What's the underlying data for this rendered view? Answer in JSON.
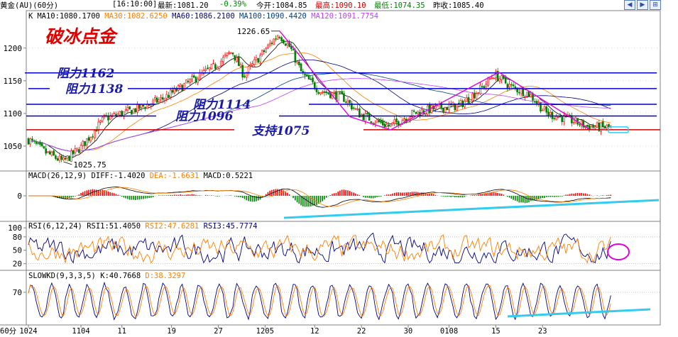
{
  "header": {
    "instrument": "黄金(AU)(60分)",
    "time": "[16:10:00]",
    "latest": "最新:1081.20",
    "change": "-0.39%",
    "open": "今开:1084.85",
    "high": "最高:1090.10",
    "low": "最低:1074.35",
    "prev_close": "昨收:1085.40"
  },
  "colors": {
    "up": "#ff0000",
    "down": "#008000",
    "ma10": "#000000",
    "ma30": "#ff8000",
    "ma60": "#000080",
    "ma100": "#004080",
    "ma120": "#c040ff",
    "trendline": "#e000e0",
    "hline": "#0000cc",
    "support": "#cc0000",
    "cyan": "#33ccee",
    "annot": "#1a1aaa",
    "title": "#e00000"
  },
  "chart_data": [
    {
      "type": "candlestick",
      "panel": "price",
      "legend": [
        {
          "text": "K",
          "color": "#000000"
        },
        {
          "text": "MA10:1080.1700",
          "color": "#000000"
        },
        {
          "text": "MA30:1082.6250",
          "color": "#ff8000"
        },
        {
          "text": "MA60:1086.2100",
          "color": "#000080"
        },
        {
          "text": "MA100:1090.4420",
          "color": "#004080"
        },
        {
          "text": "MA120:1091.7754",
          "color": "#c040ff"
        }
      ],
      "title": "破冰点金",
      "yticks": [
        1050,
        1100,
        1150,
        1200
      ],
      "ylim": [
        1013,
        1241
      ],
      "high_label": "1226.65",
      "low_label": "1025.75",
      "levels": [
        {
          "label": "阻力1162",
          "value": 1162
        },
        {
          "label": "阻力1138",
          "value": 1138
        },
        {
          "label": "阻力1114",
          "value": 1114
        },
        {
          "label": "阻力1096",
          "value": 1096
        },
        {
          "label": "支持1075",
          "value": 1075
        }
      ],
      "trend_points": [
        {
          "bar": 0.43,
          "value": 1226
        },
        {
          "bar": 0.55,
          "value": 1095
        },
        {
          "bar": 0.62,
          "value": 1075
        },
        {
          "bar": 0.805,
          "value": 1163
        },
        {
          "bar": 0.96,
          "value": 1076
        }
      ],
      "anchors": [
        {
          "t": 0.0,
          "p": 1060
        },
        {
          "t": 0.03,
          "p": 1040
        },
        {
          "t": 0.06,
          "p": 1026
        },
        {
          "t": 0.09,
          "p": 1048
        },
        {
          "t": 0.13,
          "p": 1092
        },
        {
          "t": 0.18,
          "p": 1105
        },
        {
          "t": 0.23,
          "p": 1122
        },
        {
          "t": 0.28,
          "p": 1150
        },
        {
          "t": 0.32,
          "p": 1172
        },
        {
          "t": 0.35,
          "p": 1195
        },
        {
          "t": 0.37,
          "p": 1158
        },
        {
          "t": 0.4,
          "p": 1190
        },
        {
          "t": 0.43,
          "p": 1222
        },
        {
          "t": 0.45,
          "p": 1200
        },
        {
          "t": 0.47,
          "p": 1160
        },
        {
          "t": 0.5,
          "p": 1135
        },
        {
          "t": 0.54,
          "p": 1125
        },
        {
          "t": 0.57,
          "p": 1098
        },
        {
          "t": 0.62,
          "p": 1080
        },
        {
          "t": 0.66,
          "p": 1100
        },
        {
          "t": 0.7,
          "p": 1108
        },
        {
          "t": 0.74,
          "p": 1112
        },
        {
          "t": 0.78,
          "p": 1140
        },
        {
          "t": 0.8,
          "p": 1160
        },
        {
          "t": 0.83,
          "p": 1140
        },
        {
          "t": 0.86,
          "p": 1130
        },
        {
          "t": 0.89,
          "p": 1100
        },
        {
          "t": 0.93,
          "p": 1090
        },
        {
          "t": 0.96,
          "p": 1080
        },
        {
          "t": 1.0,
          "p": 1078
        }
      ]
    },
    {
      "type": "bar",
      "panel": "macd",
      "legend": [
        {
          "text": "MACD(26,12,9)",
          "color": "#000000"
        },
        {
          "text": "DIFF:-1.4020",
          "color": "#000000"
        },
        {
          "text": "DEA:-1.6631",
          "color": "#ff8000"
        },
        {
          "text": "MACD:0.5221",
          "color": "#000000"
        }
      ],
      "yticks": [
        0
      ]
    },
    {
      "type": "line",
      "panel": "rsi",
      "legend": [
        {
          "text": "RSI(6,12,24)",
          "color": "#000000"
        },
        {
          "text": "RSI1:51.4050",
          "color": "#000000"
        },
        {
          "text": "RSI2:47.6281",
          "color": "#ff8000"
        },
        {
          "text": "RSI3:45.7774",
          "color": "#000080"
        }
      ],
      "yticks": [
        20,
        50,
        80,
        100
      ],
      "ylim": [
        10,
        105
      ]
    },
    {
      "type": "line",
      "panel": "kd",
      "legend": [
        {
          "text": "SLOWKD(9,3,3,5)",
          "color": "#000000"
        },
        {
          "text": "K:40.7668",
          "color": "#000000"
        },
        {
          "text": "D:38.3297",
          "color": "#ff8000"
        }
      ],
      "yticks": [
        70
      ],
      "ylim": [
        0,
        105
      ]
    }
  ],
  "xaxis": {
    "period": "60分",
    "labels": [
      {
        "text": "1024",
        "t": 0.0
      },
      {
        "text": "1104",
        "t": 0.09
      },
      {
        "text": "11",
        "t": 0.16
      },
      {
        "text": "19",
        "t": 0.245
      },
      {
        "text": "27",
        "t": 0.325
      },
      {
        "text": "1205",
        "t": 0.405
      },
      {
        "text": "12",
        "t": 0.49
      },
      {
        "text": "22",
        "t": 0.57
      },
      {
        "text": "30",
        "t": 0.65
      },
      {
        "text": "0108",
        "t": 0.72
      },
      {
        "text": "15",
        "t": 0.8
      },
      {
        "text": "23",
        "t": 0.88
      }
    ]
  }
}
